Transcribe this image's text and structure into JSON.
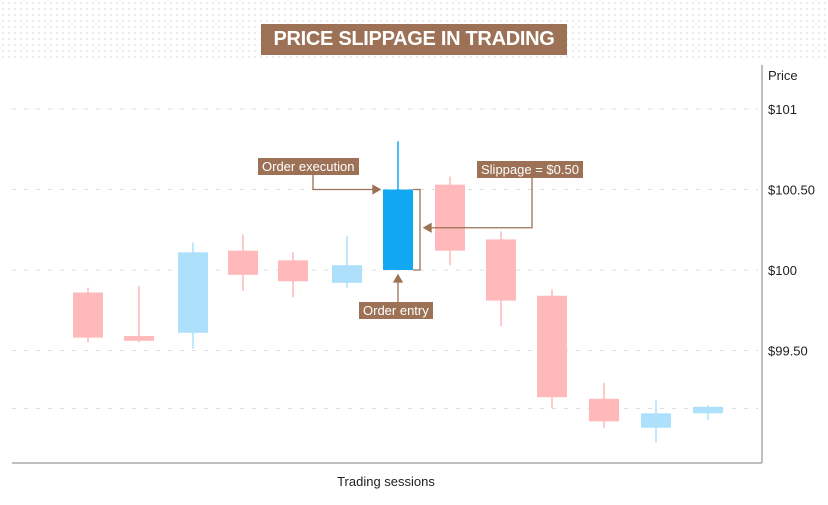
{
  "chart_data": {
    "type": "candlestick",
    "title": "PRICE SLIPPAGE IN TRADING",
    "xlabel": "Trading sessions",
    "ylabel": "Price",
    "ylim": [
      98.8,
      101.3
    ],
    "yticks": [
      {
        "value": 101,
        "label": "$101"
      },
      {
        "value": 100.5,
        "label": "$100.50"
      },
      {
        "value": 100,
        "label": "$100"
      },
      {
        "value": 99.5,
        "label": "$99.50"
      }
    ],
    "extra_gridlines": [
      99.14
    ],
    "grid": true,
    "candles": [
      {
        "open": 99.86,
        "close": 99.58,
        "high": 99.89,
        "low": 99.55
      },
      {
        "open": 99.59,
        "close": 99.56,
        "high": 99.9,
        "low": 99.55
      },
      {
        "open": 99.61,
        "close": 100.11,
        "high": 100.17,
        "low": 99.51
      },
      {
        "open": 100.12,
        "close": 99.97,
        "high": 100.22,
        "low": 99.87
      },
      {
        "open": 100.06,
        "close": 99.93,
        "high": 100.11,
        "low": 99.83
      },
      {
        "open": 99.92,
        "close": 100.03,
        "high": 100.21,
        "low": 99.89
      },
      {
        "open": 100.0,
        "close": 100.5,
        "high": 100.8,
        "low": 100.0,
        "highlight": true
      },
      {
        "open": 100.53,
        "close": 100.12,
        "high": 100.58,
        "low": 100.03
      },
      {
        "open": 100.19,
        "close": 99.81,
        "high": 100.24,
        "low": 99.65
      },
      {
        "open": 99.84,
        "close": 99.21,
        "high": 99.88,
        "low": 99.14
      },
      {
        "open": 99.2,
        "close": 99.06,
        "high": 99.3,
        "low": 99.02
      },
      {
        "open": 99.02,
        "close": 99.11,
        "high": 99.19,
        "low": 98.93
      },
      {
        "open": 99.11,
        "close": 99.15,
        "high": 99.16,
        "low": 99.07
      }
    ],
    "annotations": {
      "execution": "Order execution",
      "entry": "Order entry",
      "slippage": "Slippage = $0.50"
    },
    "colors": {
      "bullish": "#aee0fb",
      "bearish": "#ffb9ba",
      "highlight": "#12a7f2",
      "annotation": "#9c7155",
      "grid": "#dddddd",
      "axis": "#999999"
    }
  }
}
